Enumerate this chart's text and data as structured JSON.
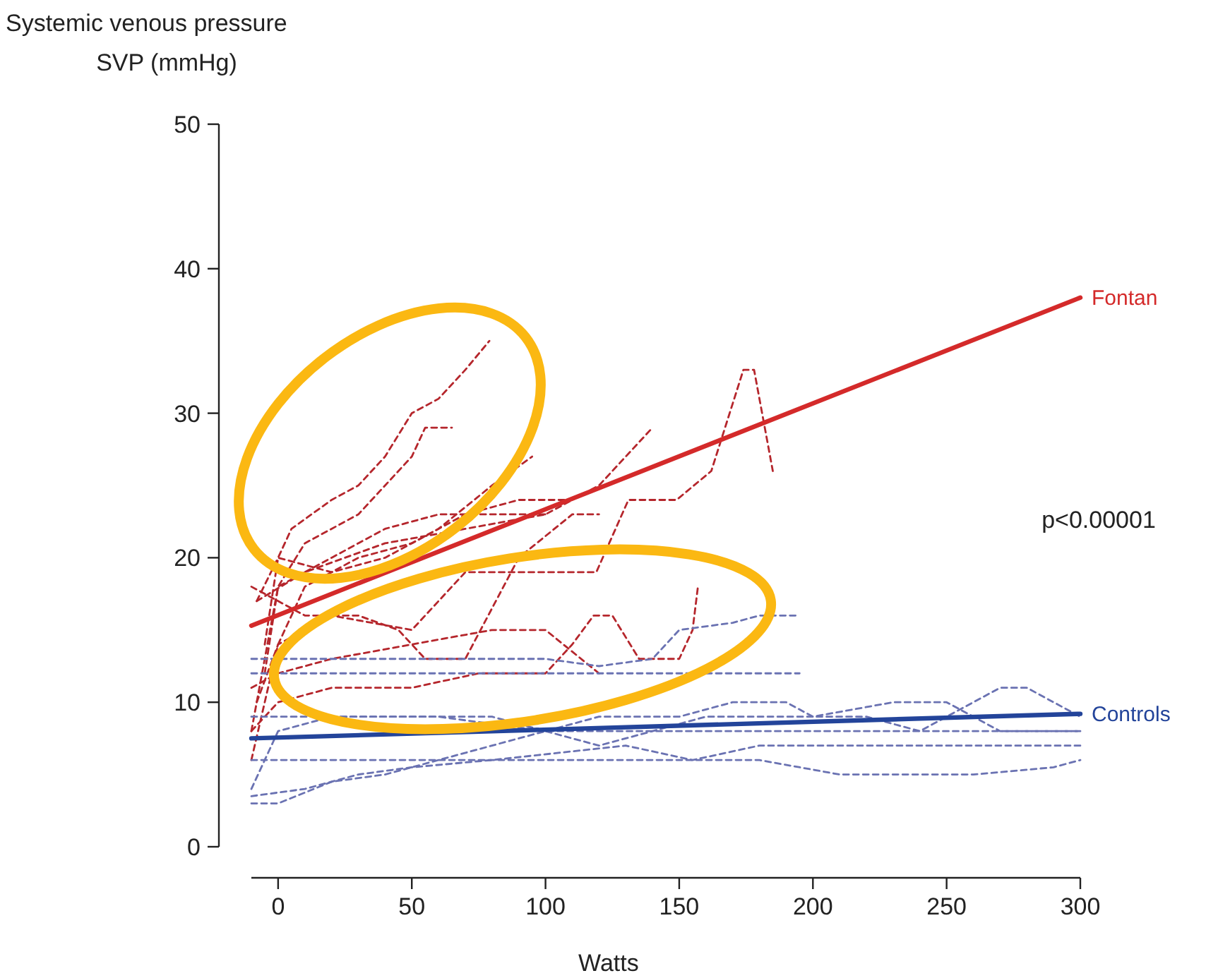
{
  "chart_data": {
    "type": "line",
    "ylabel": "Systemic venous pressure\nSVP (mmHg)",
    "xlabel": "Watts",
    "xlim": [
      -10,
      300
    ],
    "xticks": [
      0,
      50,
      100,
      150,
      200,
      250,
      300
    ],
    "ylim": [
      0,
      50
    ],
    "yticks": [
      0,
      10,
      20,
      30,
      40,
      50
    ],
    "grid": false,
    "marker": "none",
    "annotations": [
      "p<0.00001"
    ],
    "series": [
      {
        "color": "#b5262c",
        "line_style": "dashed",
        "x": [
          -5,
          0,
          5,
          20,
          30,
          40,
          50,
          60,
          70,
          79
        ],
        "values": [
          14,
          20,
          22,
          24,
          25,
          27,
          30,
          31,
          33,
          35
        ]
      },
      {
        "color": "#b5262c",
        "line_style": "dashed",
        "x": [
          -5,
          0,
          10,
          20,
          30,
          40,
          50,
          55,
          65
        ],
        "values": [
          12,
          18,
          21,
          22,
          23,
          25,
          27,
          29,
          29
        ]
      },
      {
        "color": "#b5262c",
        "line_style": "dashed",
        "x": [
          -8,
          0,
          20,
          50,
          70,
          91,
          119,
          131,
          149,
          162,
          174,
          178,
          185
        ],
        "values": [
          10,
          14,
          16,
          15,
          19,
          19,
          19,
          24,
          24,
          26,
          33,
          33,
          26
        ]
      },
      {
        "color": "#b5262c",
        "line_style": "dashed",
        "x": [
          -8,
          10,
          40,
          70,
          100,
          110,
          120,
          130,
          140
        ],
        "values": [
          17,
          19,
          21,
          22,
          23,
          24,
          25,
          27,
          29
        ]
      },
      {
        "color": "#b5262c",
        "line_style": "dashed",
        "x": [
          -10,
          0,
          20,
          50,
          75,
          100,
          110,
          118,
          125,
          135,
          150,
          155,
          157
        ],
        "values": [
          8,
          10,
          11,
          11,
          12,
          12,
          14,
          16,
          16,
          13,
          13,
          15,
          18
        ]
      },
      {
        "color": "#b5262c",
        "line_style": "dashed",
        "x": [
          -10,
          0,
          20,
          50,
          80,
          100,
          120
        ],
        "values": [
          11,
          12,
          13,
          14,
          15,
          15,
          12
        ]
      },
      {
        "color": "#b5262c",
        "line_style": "dashed",
        "x": [
          -10,
          10,
          30,
          45,
          55,
          70,
          90,
          110,
          120
        ],
        "values": [
          18,
          16,
          16,
          15,
          13,
          13,
          20,
          23,
          23
        ]
      },
      {
        "color": "#b5262c",
        "line_style": "dashed",
        "x": [
          -10,
          0,
          10,
          30,
          50,
          70,
          90,
          110
        ],
        "values": [
          6,
          14,
          18,
          20,
          21,
          23,
          24,
          24
        ]
      },
      {
        "color": "#b5262c",
        "line_style": "dashed",
        "x": [
          -10,
          0,
          20,
          40,
          60,
          80,
          100
        ],
        "values": [
          8,
          18,
          20,
          22,
          23,
          23,
          23
        ]
      },
      {
        "color": "#b5262c",
        "line_style": "dashed",
        "x": [
          -8,
          0,
          20,
          40,
          60,
          80,
          95
        ],
        "values": [
          17,
          20,
          19,
          20,
          22,
          25,
          27
        ]
      },
      {
        "color": "#6a72b2",
        "line_style": "dashed",
        "x": [
          -10,
          0,
          20,
          40,
          60,
          80,
          100,
          120,
          150,
          170,
          190,
          200,
          220,
          240,
          260,
          270,
          280,
          300
        ],
        "values": [
          3,
          3,
          4.5,
          5,
          6,
          7,
          8,
          9,
          9,
          10,
          10,
          9,
          9,
          8,
          10,
          11,
          11,
          9
        ]
      },
      {
        "color": "#6a72b2",
        "line_style": "dashed",
        "x": [
          -10,
          10,
          30,
          50,
          80,
          130,
          155,
          180,
          230,
          300
        ],
        "values": [
          3.5,
          4,
          5,
          5.5,
          6,
          7,
          6,
          7,
          7,
          7
        ]
      },
      {
        "color": "#6a72b2",
        "line_style": "dashed",
        "x": [
          -10,
          100,
          180,
          210,
          260,
          290,
          300
        ],
        "values": [
          6,
          6,
          6,
          5,
          5,
          5.5,
          6
        ]
      },
      {
        "color": "#6a72b2",
        "line_style": "dashed",
        "x": [
          -10,
          40,
          80,
          100,
          120,
          140,
          160,
          200,
          230,
          250,
          270,
          300
        ],
        "values": [
          9,
          9,
          9,
          8,
          7,
          8,
          9,
          9,
          10,
          10,
          8,
          8
        ]
      },
      {
        "color": "#6a72b2",
        "line_style": "dashed",
        "x": [
          -10,
          30,
          100,
          120,
          140,
          150,
          170,
          180,
          195
        ],
        "values": [
          13,
          13,
          13,
          12.5,
          13,
          15,
          15.5,
          16,
          16
        ]
      },
      {
        "color": "#6a72b2",
        "line_style": "dashed",
        "x": [
          -10,
          195
        ],
        "values": [
          12,
          12
        ]
      },
      {
        "color": "#6a72b2",
        "line_style": "dashed",
        "x": [
          -10,
          0,
          20,
          60,
          100,
          200,
          300
        ],
        "values": [
          4,
          8,
          9,
          9,
          8,
          8,
          8
        ]
      },
      {
        "name": "Fontan",
        "color": "#d42a2a",
        "line_style": "solid",
        "x": [
          -10,
          300
        ],
        "values": [
          15.3,
          38
        ]
      },
      {
        "name": "Controls",
        "color": "#23449a",
        "line_style": "solid",
        "x": [
          -10,
          300
        ],
        "values": [
          7.5,
          9.2
        ]
      }
    ]
  }
}
